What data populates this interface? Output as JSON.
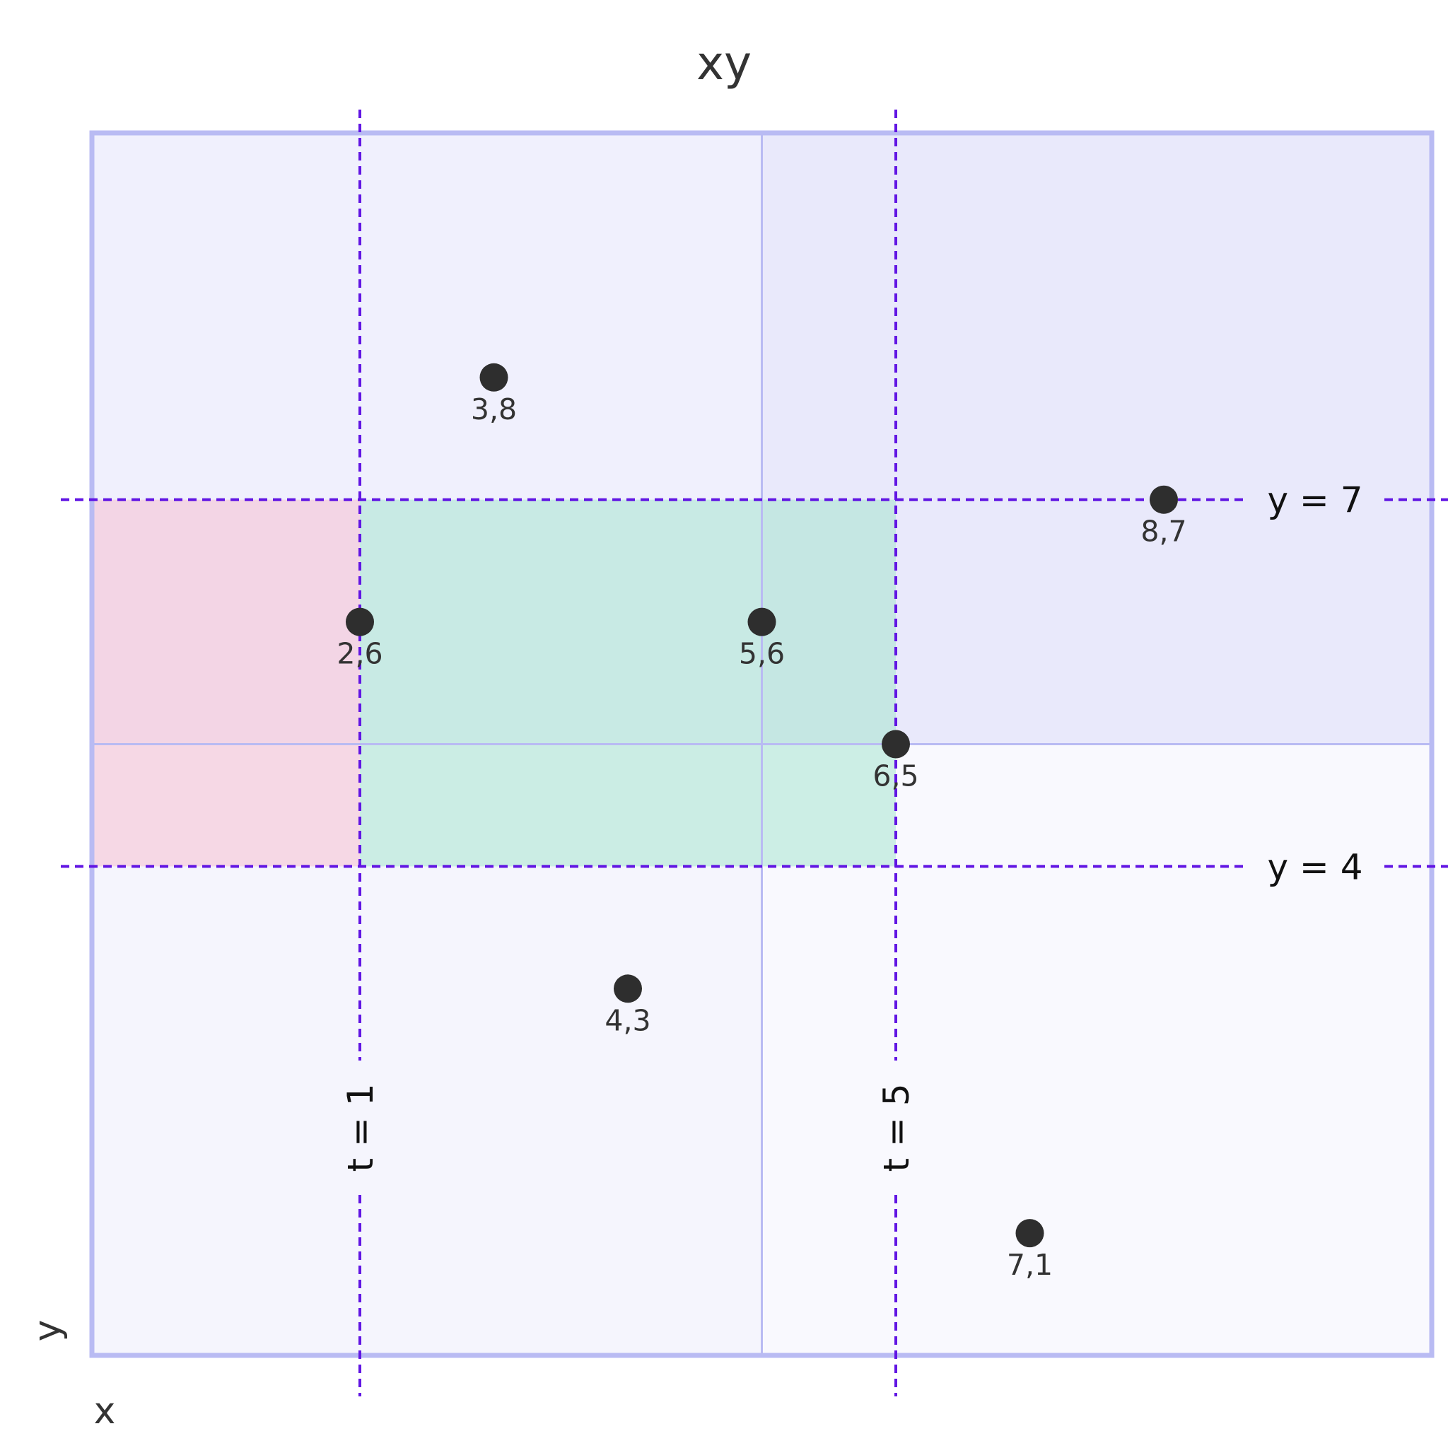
{
  "title": "xy",
  "x_axis_label": "x",
  "y_axis_label": "y",
  "colors": {
    "frame": "#b9bbf3",
    "quadrant_top_left": "#f0f0fd",
    "quadrant_top_right": "#e9e9fb",
    "quadrant_bottom_left": "#f5f5fd",
    "quadrant_bottom_right": "#f9f9fe",
    "quadrant_divider": "#b9bbf3",
    "dashed_line": "#6115e3",
    "region_pink": "#f5c0d2",
    "region_teal": "#a8e6cf",
    "point": "#2e2e2e",
    "point_label": "#333333"
  },
  "chart_data": {
    "type": "scatter",
    "x_range": [
      0,
      10
    ],
    "y_range": [
      0,
      10
    ],
    "points": [
      {
        "x": 3,
        "y": 8,
        "label": "3,8"
      },
      {
        "x": 8,
        "y": 7,
        "label": "8,7"
      },
      {
        "x": 2,
        "y": 6,
        "label": "2,6"
      },
      {
        "x": 5,
        "y": 6,
        "label": "5,6"
      },
      {
        "x": 6,
        "y": 5,
        "label": "6,5"
      },
      {
        "x": 4,
        "y": 3,
        "label": "4,3"
      },
      {
        "x": 7,
        "y": 1,
        "label": "7,1"
      }
    ],
    "vertical_lines": [
      {
        "x": 2,
        "label": "t = 1"
      },
      {
        "x": 6,
        "label": "t = 5"
      }
    ],
    "horizontal_lines": [
      {
        "y": 7,
        "label": "y = 7"
      },
      {
        "y": 4,
        "label": "y = 4"
      }
    ],
    "regions": [
      {
        "x_range": [
          0,
          2
        ],
        "y_range": [
          4,
          7
        ],
        "color": "pink"
      },
      {
        "x_range": [
          2,
          6
        ],
        "y_range": [
          4,
          7
        ],
        "color": "teal"
      }
    ]
  }
}
